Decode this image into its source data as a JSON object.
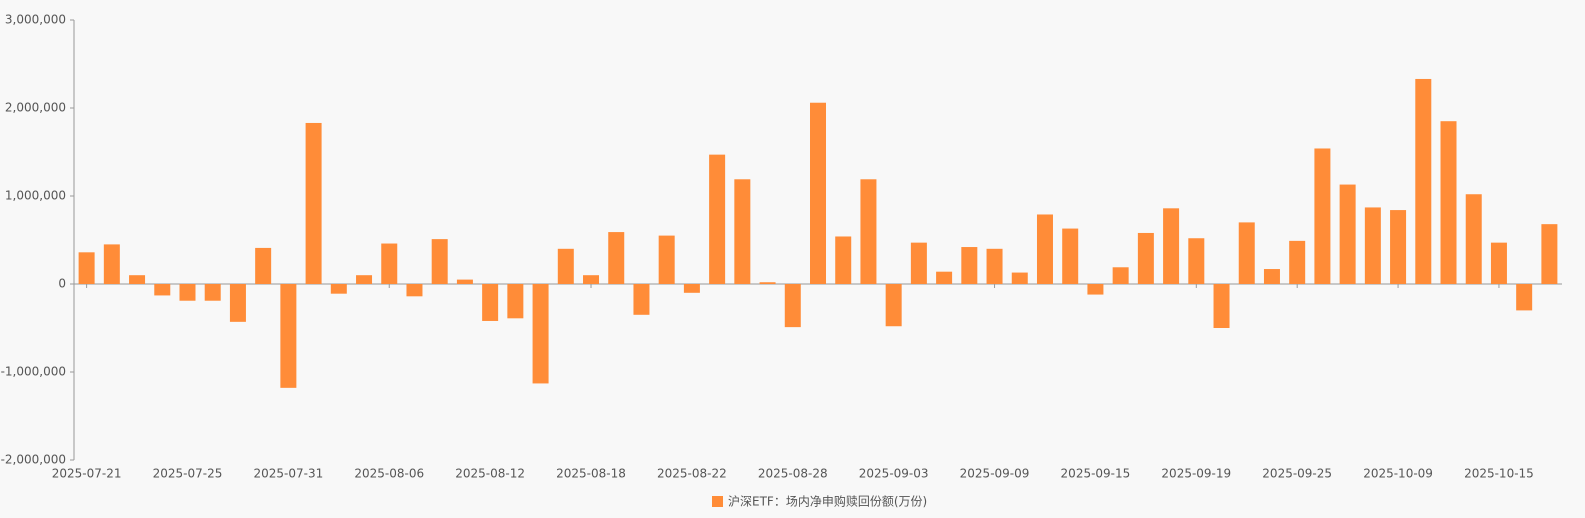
{
  "chart_data": {
    "type": "bar",
    "categories": [
      "2025-07-21",
      null,
      null,
      null,
      "2025-07-25",
      null,
      null,
      null,
      "2025-07-31",
      null,
      null,
      null,
      "2025-08-06",
      null,
      null,
      null,
      "2025-08-12",
      null,
      null,
      null,
      "2025-08-18",
      null,
      null,
      null,
      "2025-08-22",
      null,
      null,
      null,
      "2025-08-28",
      null,
      null,
      null,
      "2025-09-03",
      null,
      null,
      null,
      "2025-09-09",
      null,
      null,
      null,
      "2025-09-15",
      null,
      null,
      null,
      "2025-09-19",
      null,
      null,
      null,
      "2025-09-25",
      null,
      null,
      null,
      "2025-10-09",
      null,
      null,
      null,
      "2025-10-15",
      null,
      null
    ],
    "series": [
      {
        "name": "沪深ETF：场内净申购赎回份额(万份)",
        "color": "#ff8c38",
        "values": [
          360000,
          450000,
          100000,
          -130000,
          -190000,
          -190000,
          -430000,
          410000,
          -1180000,
          1830000,
          -110000,
          100000,
          460000,
          -140000,
          510000,
          50000,
          -420000,
          -390000,
          -1130000,
          400000,
          100000,
          590000,
          -350000,
          550000,
          -100000,
          1470000,
          1190000,
          20000,
          -490000,
          2060000,
          540000,
          1190000,
          -480000,
          470000,
          140000,
          420000,
          400000,
          130000,
          790000,
          630000,
          -120000,
          190000,
          580000,
          860000,
          520000,
          -500000,
          700000,
          170000,
          490000,
          1540000,
          1130000,
          870000,
          840000,
          2330000,
          1850000,
          1020000,
          470000,
          -300000,
          680000
        ]
      }
    ],
    "ylim": [
      -2000000,
      3000000
    ],
    "yticks": [
      {
        "value": -2000000,
        "label": "-2,000,000"
      },
      {
        "value": -1000000,
        "label": "-1,000,000"
      },
      {
        "value": 0,
        "label": "0"
      },
      {
        "value": 1000000,
        "label": "1,000,000"
      },
      {
        "value": 2000000,
        "label": "2,000,000"
      },
      {
        "value": 3000000,
        "label": "3,000,000"
      }
    ],
    "grid": false,
    "legend": "bottom"
  }
}
